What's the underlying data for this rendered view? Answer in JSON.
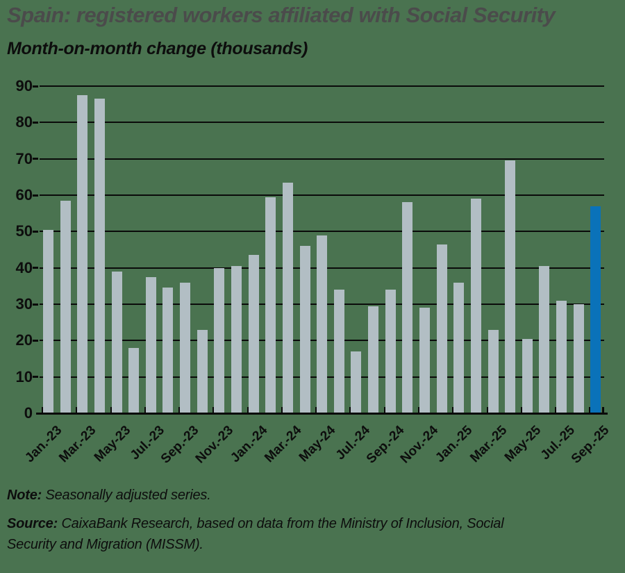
{
  "header": {
    "title": "Spain: registered workers affiliated with Social Security",
    "subtitle": "Month-on-month change (thousands)"
  },
  "chart_data": {
    "type": "bar",
    "title": "Spain: registered workers affiliated with Social Security",
    "subtitle": "Month-on-month change (thousands)",
    "categories": [
      "Jan-23",
      "Feb-23",
      "Mar-23",
      "Apr-23",
      "May-23",
      "Jun-23",
      "Jul-23",
      "Aug-23",
      "Sep-23",
      "Oct-23",
      "Nov-23",
      "Dec-23",
      "Jan-24",
      "Feb-24",
      "Mar-24",
      "Apr-24",
      "May-24",
      "Jun-24",
      "Jul-24",
      "Aug-24",
      "Sep-24",
      "Oct-24",
      "Nov-24",
      "Dec-24",
      "Jan-25",
      "Feb-25",
      "Mar-25",
      "Apr-25",
      "May-25",
      "Jun-25",
      "Jul-25",
      "Aug-25",
      "Sep-25"
    ],
    "values": [
      50.5,
      58.5,
      87.5,
      86.5,
      39,
      18,
      37.5,
      34.5,
      36,
      23,
      40,
      40.5,
      43.5,
      59.5,
      63.5,
      46,
      49,
      34,
      17,
      29.5,
      34,
      58,
      29,
      46.5,
      36,
      59,
      23,
      69.5,
      20.5,
      40.5,
      31,
      30,
      57
    ],
    "x_tick_labels": [
      "Jan.-23",
      "Mar.-23",
      "May-23",
      "Jul.-23",
      "Sep.-23",
      "Nov.-23",
      "Jan.-24",
      "Mar.-24",
      "May-24",
      "Jul.-24",
      "Sep.-24",
      "Nov.-24",
      "Jan.-25",
      "Mar.-25",
      "May-25",
      "Jul.-25",
      "Sep.-25"
    ],
    "yticks": [
      0,
      10,
      20,
      30,
      40,
      50,
      60,
      70,
      80,
      90
    ],
    "ylim": [
      0,
      90
    ],
    "grid": "horizontal",
    "legend": "none",
    "highlight_index": 32,
    "colors": {
      "bar": "#b2bec4",
      "highlight": "#0a72b9",
      "axis": "#0a0a0a",
      "background": "#4a7350",
      "title": "#4b4b4b",
      "text": "#0d0d0d"
    }
  },
  "footer": {
    "note_label": "Note:",
    "note_text": "Seasonally adjusted series.",
    "source_label": "Source:",
    "source_text": "CaixaBank Research, based on data from the Ministry of Inclusion, Social Security and Migration (MISSM)."
  }
}
